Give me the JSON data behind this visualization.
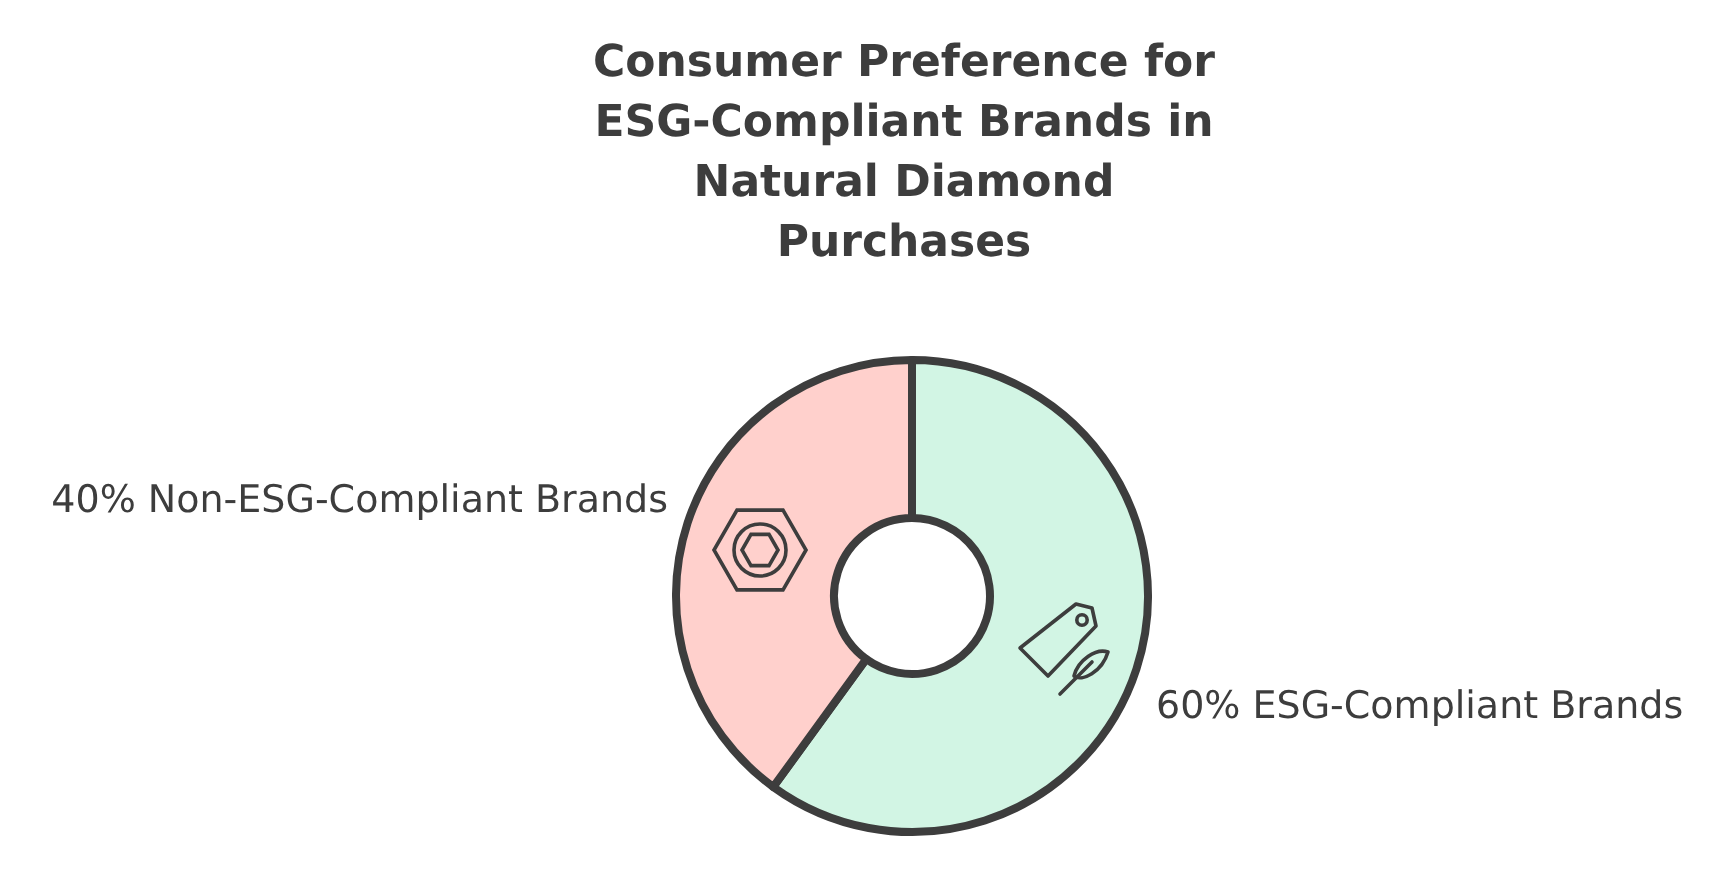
{
  "chart_data": {
    "type": "donut",
    "title": "Consumer Preference for\nESG-Compliant Brands in\nNatural Diamond\nPurchases",
    "categories": [
      "ESG-Compliant Brands",
      "Non-ESG-Compliant Brands"
    ],
    "values": [
      60,
      40
    ],
    "value_labels": [
      "60%",
      "40%"
    ],
    "colors": [
      "#d2f5e4",
      "#ffd0cc"
    ]
  }
}
